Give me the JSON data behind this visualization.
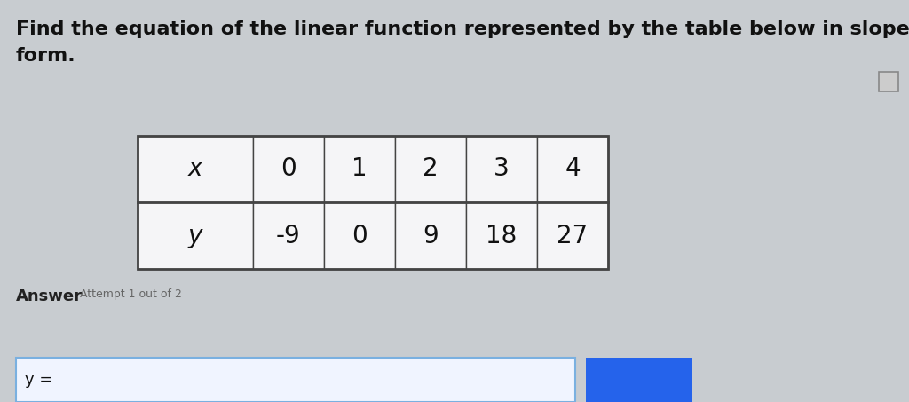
{
  "title_line1": "Find the equation of the linear function represented by the table below in slope-intercept",
  "title_line2": "form.",
  "x_label": "x",
  "y_label": "y",
  "x_values": [
    "0",
    "1",
    "2",
    "3",
    "4"
  ],
  "y_values": [
    "-9",
    "0",
    "9",
    "18",
    "27"
  ],
  "answer_label": "Answer",
  "attempt_label": "Attempt 1 out of 2",
  "bg_color": "#c8ccd0",
  "table_bg": "#f5f5f7",
  "border_color": "#444444",
  "text_color": "#111111",
  "title_fontsize": 16,
  "table_fontsize": 20,
  "answer_fontsize": 13,
  "input_border_color": "#7ab0e0",
  "submit_btn_color": "#2563eb",
  "icon_color": "#cccccc",
  "icon_border": "#888888",
  "answer_text_color": "#222222",
  "attempt_text_color": "#666666"
}
